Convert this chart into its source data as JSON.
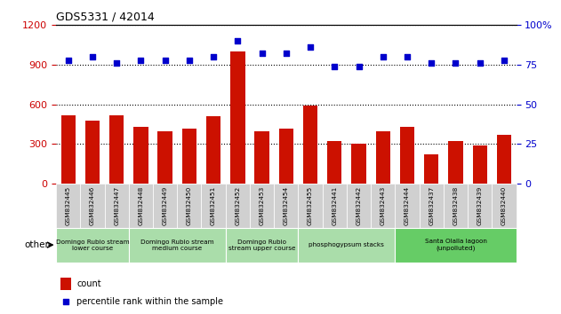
{
  "title": "GDS5331 / 42014",
  "samples": [
    "GSM832445",
    "GSM832446",
    "GSM832447",
    "GSM832448",
    "GSM832449",
    "GSM832450",
    "GSM832451",
    "GSM832452",
    "GSM832453",
    "GSM832454",
    "GSM832455",
    "GSM832441",
    "GSM832442",
    "GSM832443",
    "GSM832444",
    "GSM832437",
    "GSM832438",
    "GSM832439",
    "GSM832440"
  ],
  "counts": [
    520,
    480,
    520,
    430,
    400,
    420,
    510,
    1000,
    400,
    420,
    590,
    320,
    300,
    400,
    430,
    220,
    320,
    290,
    370
  ],
  "percentiles": [
    78,
    80,
    76,
    78,
    78,
    78,
    80,
    90,
    82,
    82,
    86,
    74,
    74,
    80,
    80,
    76,
    76,
    76,
    78
  ],
  "bar_color": "#cc1100",
  "dot_color": "#0000cc",
  "ylim_left": [
    0,
    1200
  ],
  "ylim_right": [
    0,
    100
  ],
  "yticks_left": [
    0,
    300,
    600,
    900,
    1200
  ],
  "yticks_right": [
    0,
    25,
    50,
    75,
    100
  ],
  "groups": [
    {
      "label": "Domingo Rubio stream\nlower course",
      "start": 0,
      "end": 3,
      "color": "#aaddaa"
    },
    {
      "label": "Domingo Rubio stream\nmedium course",
      "start": 3,
      "end": 7,
      "color": "#aaddaa"
    },
    {
      "label": "Domingo Rubio\nstream upper course",
      "start": 7,
      "end": 10,
      "color": "#aaddaa"
    },
    {
      "label": "phosphogypsum stacks",
      "start": 10,
      "end": 14,
      "color": "#aaddaa"
    },
    {
      "label": "Santa Olalla lagoon\n(unpolluted)",
      "start": 14,
      "end": 19,
      "color": "#66cc66"
    }
  ],
  "ylabel_left_color": "#cc0000",
  "right_tick_color": "#0000cc",
  "other_label": "other"
}
